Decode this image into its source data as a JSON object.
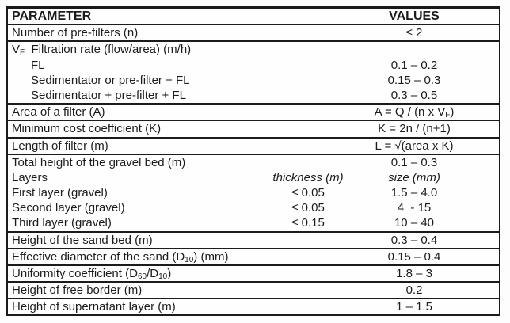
{
  "table": {
    "header": {
      "param": "PARAMETER",
      "values": "VALUES"
    },
    "rows": [
      {
        "label": "Number of pre-filters (n)",
        "value": "≤ 2"
      },
      {
        "label_parts": [
          {
            "t": "V"
          },
          {
            "t": "F",
            "sub": true
          },
          {
            "t": "  Filtration rate (flow/area) (m/h)"
          }
        ],
        "value": ""
      },
      {
        "label": "FL",
        "value": "0.1 – 0.2"
      },
      {
        "label": "Sedimentator or pre-filter + FL",
        "value": "0.15 – 0.3"
      },
      {
        "label": "Sedimentator + pre-filter + FL",
        "value": "0.3 – 0.5"
      },
      {
        "label": "Area of a filter (A)",
        "value_parts": [
          {
            "t": "A = Q / (n x V"
          },
          {
            "t": "F",
            "sub": true
          },
          {
            "t": ")"
          }
        ]
      },
      {
        "label": "Minimum cost coefficient (K)",
        "value": "K = 2n / (n+1)"
      },
      {
        "label": "Length of filter (m)",
        "value": "L = √(area x K)"
      },
      {
        "label": "Total height of the gravel bed (m)",
        "value": "0.1 – 0.3"
      },
      {
        "label": "Layers",
        "mid": "thickness (m)",
        "value": "size (mm)"
      },
      {
        "label": "First layer (gravel)",
        "mid": "≤ 0.05",
        "value": "1.5 – 4.0"
      },
      {
        "label": "Second layer (gravel)",
        "mid": "≤ 0.05",
        "value": "4  - 15"
      },
      {
        "label": "Third layer (gravel)",
        "mid": "≤ 0.15",
        "value": "10 – 40"
      },
      {
        "label": "Height of the sand bed (m)",
        "value": "0.3 – 0.4"
      },
      {
        "label_parts": [
          {
            "t": "Effective diameter of the sand (D"
          },
          {
            "t": "10",
            "sub": true
          },
          {
            "t": ") (mm)"
          }
        ],
        "value": "0.15 – 0.4"
      },
      {
        "label_parts": [
          {
            "t": "Uniformity coefficient (D"
          },
          {
            "t": "60",
            "sub": true
          },
          {
            "t": "/D"
          },
          {
            "t": "10",
            "sub": true
          },
          {
            "t": ")"
          }
        ],
        "value": "1.8 – 3"
      },
      {
        "label": "Height of free border (m)",
        "value": "0.2"
      },
      {
        "label": "Height of supernatant layer (m)",
        "value": "1 – 1.5"
      }
    ]
  }
}
